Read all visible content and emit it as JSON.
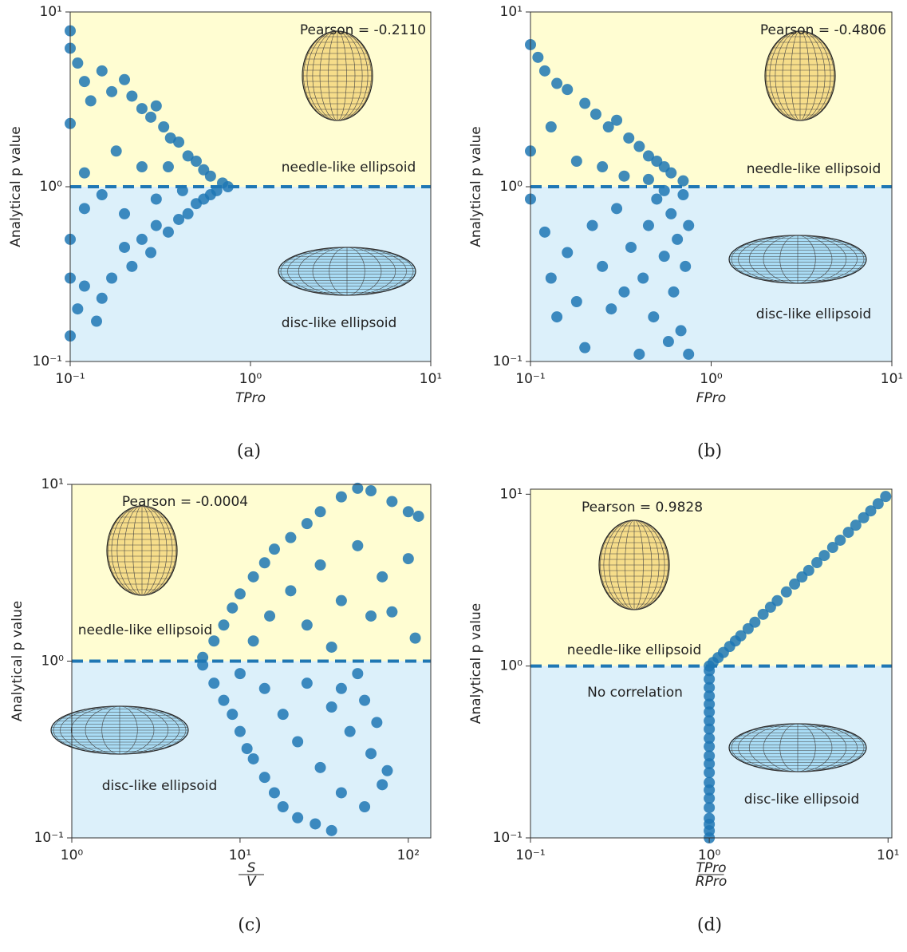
{
  "chart_data": [
    {
      "type": "scatter",
      "caption": "(a)",
      "xlabel": "TPro",
      "ylabel": "Analytical p value",
      "xscale": "log",
      "yscale": "log",
      "xlim": [
        0.1,
        10
      ],
      "ylim": [
        0.1,
        10
      ],
      "xticks": [
        {
          "value": 0.1,
          "label": "10⁻¹"
        },
        {
          "value": 1,
          "label": "10⁰"
        },
        {
          "value": 10,
          "label": "10¹"
        }
      ],
      "yticks": [
        {
          "value": 0.1,
          "label": "10⁻¹"
        },
        {
          "value": 1,
          "label": "10⁰"
        },
        {
          "value": 10,
          "label": "10¹"
        }
      ],
      "hline": 1,
      "upper_color": "#fffdd2",
      "lower_color": "#dcf0fa",
      "color": "#1f77b4",
      "annotations": [
        "Pearson = -0.2110",
        "needle-like ellipsoid",
        "disc-like ellipsoid"
      ],
      "x": [
        0.1,
        0.1,
        0.11,
        0.12,
        0.1,
        0.13,
        0.15,
        0.17,
        0.2,
        0.22,
        0.25,
        0.28,
        0.3,
        0.33,
        0.36,
        0.4,
        0.45,
        0.5,
        0.55,
        0.6,
        0.7,
        0.75,
        0.18,
        0.25,
        0.12,
        0.35,
        0.1,
        0.11,
        0.12,
        0.14,
        0.15,
        0.17,
        0.2,
        0.22,
        0.25,
        0.28,
        0.3,
        0.35,
        0.4,
        0.45,
        0.5,
        0.55,
        0.6,
        0.65,
        0.1,
        0.12,
        0.15,
        0.2,
        0.3,
        0.42,
        0.1
      ],
      "y": [
        7.8,
        6.2,
        5.1,
        4.0,
        2.3,
        3.1,
        4.6,
        3.5,
        4.1,
        3.3,
        2.8,
        2.5,
        2.9,
        2.2,
        1.9,
        1.8,
        1.5,
        1.4,
        1.25,
        1.15,
        1.05,
        1.0,
        1.6,
        1.3,
        1.2,
        1.3,
        0.14,
        0.2,
        0.27,
        0.17,
        0.23,
        0.3,
        0.45,
        0.35,
        0.5,
        0.42,
        0.6,
        0.55,
        0.65,
        0.7,
        0.8,
        0.85,
        0.9,
        0.95,
        0.5,
        0.75,
        0.9,
        0.7,
        0.85,
        0.95,
        0.3
      ]
    },
    {
      "type": "scatter",
      "caption": "(b)",
      "xlabel": "FPro",
      "ylabel": "Analytical p value",
      "xscale": "log",
      "yscale": "log",
      "xlim": [
        0.1,
        10
      ],
      "ylim": [
        0.1,
        10
      ],
      "xticks": [
        {
          "value": 0.1,
          "label": "10⁻¹"
        },
        {
          "value": 1,
          "label": "10⁰"
        },
        {
          "value": 10,
          "label": "10¹"
        }
      ],
      "yticks": [
        {
          "value": 0.1,
          "label": "10⁻¹"
        },
        {
          "value": 1,
          "label": "10⁰"
        },
        {
          "value": 10,
          "label": "10¹"
        }
      ],
      "hline": 1,
      "upper_color": "#fffdd2",
      "lower_color": "#dcf0fa",
      "color": "#1f77b4",
      "annotations": [
        "Pearson = -0.4806",
        "needle-like ellipsoid",
        "disc-like ellipsoid"
      ],
      "x": [
        0.1,
        0.11,
        0.12,
        0.14,
        0.16,
        0.2,
        0.23,
        0.27,
        0.3,
        0.35,
        0.4,
        0.45,
        0.5,
        0.55,
        0.6,
        0.7,
        0.1,
        0.13,
        0.18,
        0.25,
        0.33,
        0.45,
        0.1,
        0.12,
        0.13,
        0.14,
        0.16,
        0.18,
        0.2,
        0.22,
        0.25,
        0.28,
        0.3,
        0.33,
        0.36,
        0.4,
        0.42,
        0.45,
        0.48,
        0.5,
        0.55,
        0.58,
        0.6,
        0.62,
        0.65,
        0.68,
        0.7,
        0.72,
        0.75,
        0.75,
        0.55
      ],
      "y": [
        6.5,
        5.5,
        4.6,
        3.9,
        3.6,
        3.0,
        2.6,
        2.2,
        2.4,
        1.9,
        1.7,
        1.5,
        1.4,
        1.3,
        1.2,
        1.08,
        1.6,
        2.2,
        1.4,
        1.3,
        1.15,
        1.1,
        0.85,
        0.55,
        0.3,
        0.18,
        0.42,
        0.22,
        0.12,
        0.6,
        0.35,
        0.2,
        0.75,
        0.25,
        0.45,
        0.11,
        0.3,
        0.6,
        0.18,
        0.85,
        0.4,
        0.13,
        0.7,
        0.25,
        0.5,
        0.15,
        0.9,
        0.35,
        0.6,
        0.11,
        0.95
      ]
    },
    {
      "type": "scatter",
      "caption": "(c)",
      "xlabel": {
        "numerator": "S",
        "denominator": "V"
      },
      "ylabel": "Analytical p value",
      "xscale": "log",
      "yscale": "log",
      "xlim": [
        1,
        136
      ],
      "ylim": [
        0.1,
        10
      ],
      "xticks": [
        {
          "value": 1,
          "label": "10⁰"
        },
        {
          "value": 10,
          "label": "10¹"
        },
        {
          "value": 100,
          "label": "10²"
        }
      ],
      "yticks": [
        {
          "value": 0.1,
          "label": "10⁻¹"
        },
        {
          "value": 1,
          "label": "10⁰"
        },
        {
          "value": 10,
          "label": "10¹"
        }
      ],
      "hline": 1,
      "upper_color": "#fffdd2",
      "lower_color": "#dcf0fa",
      "color": "#1f77b4",
      "annotations": [
        "Pearson = -0.0004",
        "needle-like ellipsoid",
        "disc-like ellipsoid"
      ],
      "x": [
        6,
        7,
        8,
        9,
        10,
        12,
        14,
        16,
        20,
        25,
        30,
        40,
        50,
        60,
        80,
        100,
        115,
        12,
        15,
        20,
        25,
        30,
        40,
        50,
        60,
        70,
        80,
        100,
        110,
        35,
        6,
        7,
        8,
        9,
        10,
        11,
        12,
        14,
        16,
        18,
        22,
        28,
        35,
        10,
        14,
        18,
        22,
        25,
        30,
        35,
        40,
        45,
        50,
        55,
        60,
        65,
        70,
        75,
        40,
        55
      ],
      "y": [
        1.05,
        1.3,
        1.6,
        2.0,
        2.4,
        3.0,
        3.6,
        4.3,
        5.0,
        6.0,
        7.0,
        8.5,
        9.5,
        9.2,
        8,
        7,
        6.6,
        1.3,
        1.8,
        2.5,
        1.6,
        3.5,
        2.2,
        4.5,
        1.8,
        3.0,
        1.9,
        3.8,
        1.35,
        1.2,
        0.95,
        0.75,
        0.6,
        0.5,
        0.4,
        0.32,
        0.28,
        0.22,
        0.18,
        0.15,
        0.13,
        0.12,
        0.11,
        0.85,
        0.7,
        0.5,
        0.35,
        0.75,
        0.25,
        0.55,
        0.18,
        0.4,
        0.85,
        0.15,
        0.3,
        0.45,
        0.2,
        0.24,
        0.7,
        0.6
      ]
    },
    {
      "type": "scatter",
      "caption": "(d)",
      "xlabel": {
        "numerator": "TPro",
        "denominator": "RPro"
      },
      "ylabel": "Analytical p value",
      "xscale": "log",
      "yscale": "log",
      "xlim": [
        0.1,
        10.5
      ],
      "ylim": [
        0.1,
        10.7
      ],
      "xticks": [
        {
          "value": 0.1,
          "label": "10⁻¹"
        },
        {
          "value": 1,
          "label": "10⁰"
        },
        {
          "value": 10,
          "label": "10¹"
        }
      ],
      "yticks": [
        {
          "value": 0.1,
          "label": "10⁻¹"
        },
        {
          "value": 1,
          "label": "10⁰"
        },
        {
          "value": 10,
          "label": "10¹"
        }
      ],
      "hline": 1,
      "upper_color": "#fffdd2",
      "lower_color": "#dcf0fa",
      "color": "#1f77b4",
      "annotations": [
        "Pearson = 0.9828",
        "needle-like ellipsoid",
        "disc-like ellipsoid",
        "No correlation"
      ],
      "x": [
        1,
        1,
        1,
        1,
        1,
        1,
        1,
        1,
        1,
        1,
        1,
        1,
        1,
        1,
        1,
        1,
        1,
        1,
        1,
        1,
        1,
        1,
        1.05,
        1.12,
        1.2,
        1.3,
        1.4,
        1.5,
        1.65,
        1.8,
        2,
        2.2,
        2.4,
        2.7,
        3,
        3.3,
        3.6,
        4,
        4.4,
        4.9,
        5.4,
        6,
        6.6,
        7.3,
        8,
        8.8,
        9.7
      ],
      "y": [
        0.1,
        0.11,
        0.12,
        0.13,
        0.15,
        0.17,
        0.19,
        0.21,
        0.24,
        0.27,
        0.3,
        0.34,
        0.38,
        0.43,
        0.48,
        0.54,
        0.6,
        0.67,
        0.75,
        0.84,
        0.94,
        1,
        1.05,
        1.12,
        1.2,
        1.3,
        1.4,
        1.5,
        1.65,
        1.8,
        2,
        2.2,
        2.4,
        2.7,
        3,
        3.3,
        3.6,
        4,
        4.4,
        4.9,
        5.4,
        6,
        6.6,
        7.3,
        8,
        8.8,
        9.7
      ]
    }
  ]
}
